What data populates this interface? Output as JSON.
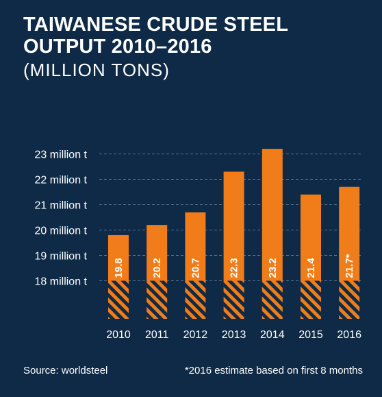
{
  "title_line1": "TAIWANESE CRUDE STEEL",
  "title_line2": "OUTPUT 2010–2016",
  "subtitle": "(MILLION TONS)",
  "source": "Source: worldsteel",
  "footnote": "*2016 estimate based on first 8 months",
  "colors": {
    "background": "#0e2a46",
    "bar": "#f07d19",
    "grid": "#5a7290",
    "text": "#ffffff"
  },
  "chart_data": {
    "type": "bar",
    "categories": [
      "2010",
      "2011",
      "2012",
      "2013",
      "2014",
      "2015",
      "2016"
    ],
    "values": [
      19.8,
      20.2,
      20.7,
      22.3,
      23.2,
      21.4,
      21.7
    ],
    "data_labels": [
      "19.8",
      "20.2",
      "20.7",
      "22.3",
      "23.2",
      "21.4",
      "21.7*"
    ],
    "y_ticks": [
      18,
      19,
      20,
      21,
      22,
      23
    ],
    "y_tick_labels": [
      "18 million t",
      "19 million t",
      "20 million t",
      "21 million t",
      "22 million t",
      "23 million t"
    ],
    "ylim": [
      16.5,
      23.5
    ],
    "baseline_hatched_to": 18,
    "grid": true,
    "legend": false
  }
}
